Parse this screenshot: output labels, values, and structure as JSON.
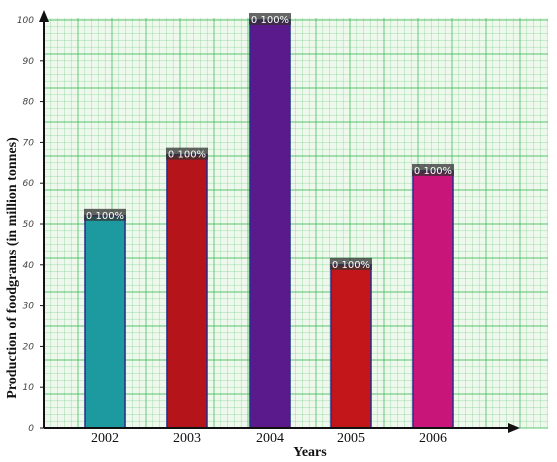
{
  "chart_data": {
    "type": "bar",
    "categories": [
      "2002",
      "2003",
      "2004",
      "2005",
      "2006"
    ],
    "values": [
      52,
      67,
      100,
      40,
      63
    ],
    "colors": [
      "#1d9aa0",
      "#b5141a",
      "#5a1a8c",
      "#c2161b",
      "#c8157a"
    ],
    "data_labels": [
      "0 100%",
      "0 100%",
      "0 100%",
      "0 100%",
      "0 100%"
    ],
    "ylabel": "Production of foodgrams (in million tonnes)",
    "xlabel": "Years",
    "y_tick_labels": [
      "0",
      "10",
      "20",
      "30",
      "40",
      "50",
      "60",
      "70",
      "80",
      "90",
      "100"
    ],
    "ylim": [
      0,
      100
    ],
    "grid": true,
    "grid_color": "#27b34a"
  }
}
